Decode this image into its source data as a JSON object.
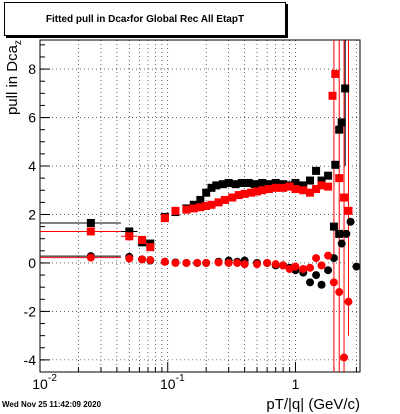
{
  "chart_data": {
    "type": "scatter",
    "title_main": "Fitted pull in Dca",
    "title_sub": "z",
    "title_rest": " for Global Rec All EtapT",
    "xlabel": "pT/|q| (GeV/c)",
    "ylabel_main": "pull in Dca",
    "ylabel_sub": "z",
    "x_scale": "log",
    "xlim": [
      0.01,
      3.2
    ],
    "ylim": [
      -4.5,
      9.2
    ],
    "grid": true,
    "x_ticks": [
      "10",
      "10",
      "1"
    ],
    "x_tick_exponents": [
      "-2",
      "-1",
      ""
    ],
    "y_ticks": [
      "-4",
      "-2",
      "0",
      "2",
      "4",
      "6",
      "8"
    ],
    "series": [
      {
        "color": "#000000",
        "marker": "square",
        "points": [
          [
            0.025,
            1.65
          ],
          [
            0.05,
            1.3
          ],
          [
            0.063,
            0.85
          ],
          [
            0.073,
            0.8
          ],
          [
            0.095,
            1.9
          ],
          [
            0.115,
            2.1
          ],
          [
            0.14,
            2.25
          ],
          [
            0.16,
            2.4
          ],
          [
            0.18,
            2.6
          ],
          [
            0.2,
            2.9
          ],
          [
            0.22,
            3.1
          ],
          [
            0.24,
            3.2
          ],
          [
            0.27,
            3.25
          ],
          [
            0.3,
            3.3
          ],
          [
            0.34,
            3.25
          ],
          [
            0.38,
            3.3
          ],
          [
            0.43,
            3.3
          ],
          [
            0.48,
            3.25
          ],
          [
            0.55,
            3.3
          ],
          [
            0.62,
            3.25
          ],
          [
            0.7,
            3.3
          ],
          [
            0.8,
            3.25
          ],
          [
            0.9,
            3.2
          ],
          [
            1.0,
            3.3
          ],
          [
            1.15,
            3.2
          ],
          [
            1.3,
            3.4
          ],
          [
            1.45,
            3.8
          ],
          [
            1.6,
            3.4
          ],
          [
            1.8,
            3.6
          ],
          [
            2.05,
            4.05
          ],
          [
            2.2,
            5.5
          ],
          [
            2.3,
            5.8
          ],
          [
            2.45,
            7.2
          ],
          [
            2.0,
            1.5
          ],
          [
            2.2,
            1.2
          ]
        ]
      },
      {
        "color": "#000000",
        "marker": "circle",
        "points": [
          [
            0.025,
            0.28
          ],
          [
            0.05,
            0.25
          ],
          [
            0.063,
            0.15
          ],
          [
            0.073,
            0.1
          ],
          [
            0.095,
            0.05
          ],
          [
            0.115,
            0.02
          ],
          [
            0.14,
            0.0
          ],
          [
            0.17,
            0.0
          ],
          [
            0.2,
            0.0
          ],
          [
            0.25,
            0.05
          ],
          [
            0.3,
            0.1
          ],
          [
            0.35,
            0.05
          ],
          [
            0.4,
            0.1
          ],
          [
            0.5,
            0.0
          ],
          [
            0.6,
            0.0
          ],
          [
            0.7,
            -0.1
          ],
          [
            0.8,
            -0.1
          ],
          [
            0.9,
            -0.2
          ],
          [
            1.0,
            -0.3
          ],
          [
            1.15,
            -0.4
          ],
          [
            1.3,
            -0.8
          ],
          [
            1.45,
            -0.5
          ],
          [
            1.6,
            -0.9
          ],
          [
            1.8,
            -0.3
          ],
          [
            2.0,
            0.2
          ],
          [
            2.3,
            0.8
          ],
          [
            2.5,
            1.2
          ],
          [
            2.7,
            1.7
          ],
          [
            3.0,
            -0.15
          ]
        ]
      },
      {
        "color": "#ff0000",
        "marker": "square",
        "points": [
          [
            0.025,
            1.3
          ],
          [
            0.05,
            1.1
          ],
          [
            0.063,
            0.95
          ],
          [
            0.073,
            0.65
          ],
          [
            0.095,
            1.85
          ],
          [
            0.115,
            2.15
          ],
          [
            0.14,
            2.2
          ],
          [
            0.16,
            2.25
          ],
          [
            0.18,
            2.3
          ],
          [
            0.2,
            2.35
          ],
          [
            0.22,
            2.4
          ],
          [
            0.25,
            2.5
          ],
          [
            0.28,
            2.6
          ],
          [
            0.32,
            2.7
          ],
          [
            0.36,
            2.8
          ],
          [
            0.4,
            2.85
          ],
          [
            0.45,
            2.9
          ],
          [
            0.5,
            2.95
          ],
          [
            0.55,
            3.0
          ],
          [
            0.62,
            3.05
          ],
          [
            0.7,
            3.1
          ],
          [
            0.8,
            3.1
          ],
          [
            0.9,
            3.15
          ],
          [
            1.0,
            3.05
          ],
          [
            1.15,
            3.0
          ],
          [
            1.3,
            2.9
          ],
          [
            1.45,
            3.05
          ],
          [
            1.6,
            3.2
          ],
          [
            1.8,
            3.15
          ],
          [
            1.95,
            6.9
          ],
          [
            2.05,
            7.8
          ],
          [
            2.2,
            3.5
          ],
          [
            2.4,
            2.7
          ],
          [
            2.6,
            2.15
          ]
        ]
      },
      {
        "color": "#ff0000",
        "marker": "circle",
        "points": [
          [
            0.025,
            0.22
          ],
          [
            0.05,
            0.18
          ],
          [
            0.063,
            0.15
          ],
          [
            0.073,
            0.12
          ],
          [
            0.095,
            0.05
          ],
          [
            0.115,
            0.0
          ],
          [
            0.14,
            0.0
          ],
          [
            0.17,
            0.0
          ],
          [
            0.2,
            0.0
          ],
          [
            0.25,
            0.02
          ],
          [
            0.3,
            0.0
          ],
          [
            0.35,
            0.0
          ],
          [
            0.4,
            -0.05
          ],
          [
            0.5,
            -0.05
          ],
          [
            0.6,
            0.0
          ],
          [
            0.7,
            -0.05
          ],
          [
            0.8,
            -0.1
          ],
          [
            0.9,
            -0.25
          ],
          [
            1.0,
            -0.15
          ],
          [
            1.15,
            -0.25
          ],
          [
            1.3,
            -0.2
          ],
          [
            1.45,
            0.2
          ],
          [
            1.6,
            -0.1
          ],
          [
            1.8,
            0.3
          ],
          [
            2.0,
            -0.8
          ],
          [
            2.2,
            -1.2
          ],
          [
            2.4,
            -3.9
          ],
          [
            2.6,
            -1.6
          ]
        ]
      }
    ],
    "x_error_bars": [
      {
        "color": "#000000",
        "x0": 0.01,
        "x1": 0.043,
        "y": 1.65
      },
      {
        "color": "#ff0000",
        "x0": 0.01,
        "x1": 0.043,
        "y": 1.3
      },
      {
        "color": "#000000",
        "x0": 0.01,
        "x1": 0.043,
        "y": 0.28
      },
      {
        "color": "#ff0000",
        "x0": 0.01,
        "x1": 0.043,
        "y": 0.22
      },
      {
        "color": "#000000",
        "x0": 0.043,
        "x1": 0.058,
        "y": 1.3
      },
      {
        "color": "#ff0000",
        "x0": 0.043,
        "x1": 0.058,
        "y": 1.1
      }
    ],
    "y_error_bars": [
      {
        "color": "#ff0000",
        "x": 2.0,
        "y0": -4.5,
        "y1": 9.2
      },
      {
        "color": "#ff0000",
        "x": 2.2,
        "y0": -4.5,
        "y1": 9.2
      },
      {
        "color": "#ff0000",
        "x": 2.4,
        "y0": -4.5,
        "y1": 9.2
      },
      {
        "color": "#ff0000",
        "x": 2.6,
        "y0": -3.0,
        "y1": 9.2
      },
      {
        "color": "#000000",
        "x": 2.45,
        "y0": 4.0,
        "y1": 9.2
      }
    ]
  },
  "footer": {
    "timestamp": "Wed Nov 25 11:42:09 2020"
  }
}
